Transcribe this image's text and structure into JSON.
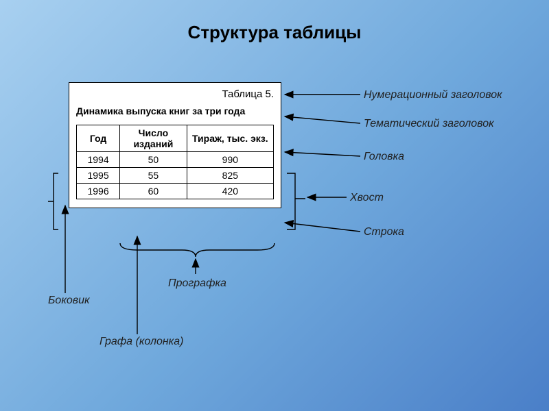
{
  "background": {
    "gradient_stops": [
      "#a8d0f0",
      "#6fa8dc",
      "#4a7fc8"
    ],
    "gradient_angle_deg": 135
  },
  "title": "Структура таблицы",
  "title_fontsize": 26,
  "title_color": "#000000",
  "table_box": {
    "background": "#ffffff",
    "border_color": "#000000",
    "numeration_title": "Таблица 5.",
    "thematic_title": "Динамика выпуска книг за три года",
    "columns": [
      "Год",
      "Число изданий",
      "Тираж, тыс. экз."
    ],
    "col_widths_pct": [
      22,
      34,
      44
    ],
    "rows": [
      [
        "1994",
        "50",
        "990"
      ],
      [
        "1995",
        "55",
        "825"
      ],
      [
        "1996",
        "60",
        "420"
      ]
    ],
    "header_fontsize": 14,
    "cell_fontsize": 14
  },
  "labels": {
    "numeration": "Нумерационный заголовок",
    "thematic": "Тематический заголовок",
    "head": "Головка",
    "tail": "Хвост",
    "row": "Строка",
    "side": "Боковик",
    "column_group": "Прографка",
    "column": "Графа (колонка)",
    "color": "#202020",
    "fontsize": 16
  },
  "arrow_color": "#000000",
  "arrow_stroke_width": 1.4
}
